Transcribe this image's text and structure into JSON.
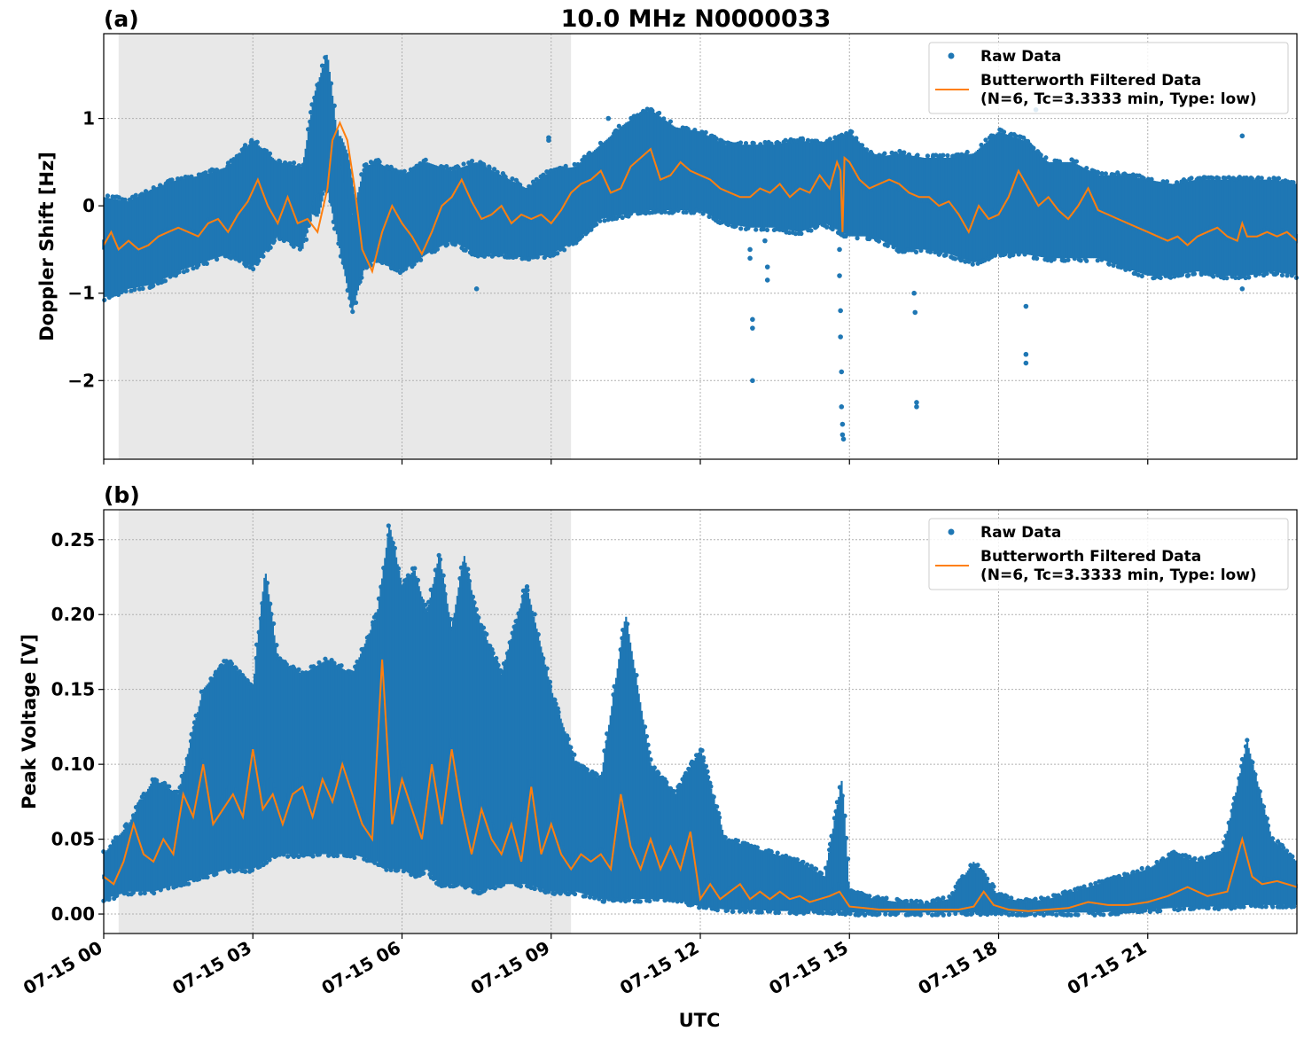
{
  "figure_title": "10.0 MHz N0000033",
  "xlabel": "UTC",
  "x_tick_labels": [
    "07-15 00",
    "07-15 03",
    "07-15 06",
    "07-15 09",
    "07-15 12",
    "07-15 15",
    "07-15 18",
    "07-15 21"
  ],
  "colors": {
    "raw": "#1f77b4",
    "filtered": "#ff7f0e",
    "night_shade": "#e8e8e8",
    "grid": "#b0b0b0"
  },
  "legend": {
    "raw_label": "Raw Data",
    "filtered_label_line1": "Butterworth Filtered Data",
    "filtered_label_line2": "(N=6, Tc=3.3333 min, Type: low)",
    "placement": "top-right"
  },
  "chart_data": [
    {
      "panel_label": "(a)",
      "type": "scatter",
      "ylabel": "Doppler Shift [Hz]",
      "y_ticks": [
        1,
        0,
        -1,
        -2
      ],
      "y_tick_labels": [
        "1",
        "0",
        "−1",
        "−2"
      ],
      "xlim_hours": [
        0,
        24
      ],
      "ylim": [
        -2.9,
        1.97
      ],
      "shaded_region_hours": [
        0.3,
        9.4
      ],
      "grid": true,
      "series": [
        {
          "name": "Raw Data",
          "style": "points",
          "band_hours": [
            0,
            0.5,
            1,
            1.5,
            2,
            2.5,
            3,
            3.5,
            4,
            4.25,
            4.5,
            4.75,
            5,
            5.25,
            5.5,
            6,
            6.5,
            7,
            7.5,
            8,
            8.5,
            9,
            9.5,
            10,
            10.5,
            11,
            11.5,
            12,
            12.5,
            13,
            13.5,
            14,
            14.5,
            15,
            15.5,
            16,
            16.5,
            17,
            17.5,
            18,
            18.5,
            19,
            19.5,
            20,
            20.5,
            21,
            21.5,
            22,
            22.5,
            23,
            23.5,
            24
          ],
          "band_low": [
            -1.05,
            -0.95,
            -0.9,
            -0.75,
            -0.65,
            -0.55,
            -0.7,
            -0.35,
            -0.5,
            0.1,
            0.2,
            -0.5,
            -1.2,
            -0.7,
            -0.6,
            -0.75,
            -0.55,
            -0.4,
            -0.55,
            -0.55,
            -0.6,
            -0.55,
            -0.4,
            -0.15,
            -0.1,
            -0.05,
            -0.05,
            -0.05,
            -0.2,
            -0.25,
            -0.25,
            -0.3,
            -0.2,
            -0.35,
            -0.35,
            -0.5,
            -0.5,
            -0.55,
            -0.65,
            -0.55,
            -0.55,
            -0.6,
            -0.6,
            -0.6,
            -0.7,
            -0.8,
            -0.8,
            -0.75,
            -0.8,
            -0.8,
            -0.75,
            -0.8
          ],
          "band_high": [
            0.1,
            0.05,
            0.2,
            0.3,
            0.35,
            0.45,
            0.75,
            0.5,
            0.45,
            1.3,
            1.75,
            0.55,
            -0.1,
            0.45,
            0.5,
            0.35,
            0.5,
            0.4,
            0.5,
            0.35,
            0.2,
            0.4,
            0.45,
            0.7,
            0.95,
            1.1,
            0.9,
            0.85,
            0.7,
            0.7,
            0.7,
            0.75,
            0.7,
            0.85,
            0.55,
            0.6,
            0.55,
            0.55,
            0.6,
            0.85,
            0.75,
            0.5,
            0.5,
            0.35,
            0.35,
            0.3,
            0.25,
            0.3,
            0.3,
            0.3,
            0.3,
            0.25
          ],
          "outliers": [
            {
              "x": 13.0,
              "y": -0.5
            },
            {
              "x": 13.0,
              "y": -0.6
            },
            {
              "x": 13.05,
              "y": -1.3
            },
            {
              "x": 13.05,
              "y": -1.4
            },
            {
              "x": 13.05,
              "y": -2.0
            },
            {
              "x": 13.3,
              "y": -0.4
            },
            {
              "x": 13.35,
              "y": -0.7
            },
            {
              "x": 13.35,
              "y": -0.85
            },
            {
              "x": 14.8,
              "y": -0.5
            },
            {
              "x": 14.8,
              "y": -0.8
            },
            {
              "x": 14.82,
              "y": -1.2
            },
            {
              "x": 14.82,
              "y": -1.5
            },
            {
              "x": 14.84,
              "y": -1.9
            },
            {
              "x": 14.84,
              "y": -2.3
            },
            {
              "x": 14.86,
              "y": -2.5
            },
            {
              "x": 14.86,
              "y": -2.62
            },
            {
              "x": 14.88,
              "y": -2.67
            },
            {
              "x": 16.3,
              "y": -1.0
            },
            {
              "x": 16.32,
              "y": -1.22
            },
            {
              "x": 16.35,
              "y": -2.25
            },
            {
              "x": 16.35,
              "y": -2.3
            },
            {
              "x": 18.55,
              "y": -1.15
            },
            {
              "x": 18.55,
              "y": -1.7
            },
            {
              "x": 18.55,
              "y": -1.8
            },
            {
              "x": 8.95,
              "y": 0.75
            },
            {
              "x": 8.95,
              "y": 0.78
            },
            {
              "x": 10.15,
              "y": 1.0
            },
            {
              "x": 18.75,
              "y": 1.1
            },
            {
              "x": 22.9,
              "y": 0.8
            },
            {
              "x": 22.9,
              "y": -0.95
            },
            {
              "x": 21.8,
              "y": -0.8
            },
            {
              "x": 7.5,
              "y": -0.95
            }
          ]
        },
        {
          "name": "Butterworth Filtered Data",
          "style": "line",
          "x_hours": [
            0,
            0.15,
            0.3,
            0.5,
            0.7,
            0.9,
            1.1,
            1.3,
            1.5,
            1.7,
            1.9,
            2.1,
            2.3,
            2.5,
            2.7,
            2.9,
            3.1,
            3.3,
            3.5,
            3.7,
            3.9,
            4.1,
            4.3,
            4.5,
            4.6,
            4.75,
            4.9,
            5.05,
            5.2,
            5.4,
            5.6,
            5.8,
            6.0,
            6.2,
            6.4,
            6.6,
            6.8,
            7.0,
            7.2,
            7.4,
            7.6,
            7.8,
            8.0,
            8.2,
            8.4,
            8.6,
            8.8,
            9.0,
            9.2,
            9.4,
            9.6,
            9.8,
            10.0,
            10.2,
            10.4,
            10.6,
            10.8,
            11.0,
            11.2,
            11.4,
            11.6,
            11.8,
            12.0,
            12.2,
            12.4,
            12.6,
            12.8,
            13.0,
            13.2,
            13.4,
            13.6,
            13.8,
            14.0,
            14.2,
            14.4,
            14.6,
            14.75,
            14.82,
            14.86,
            14.9,
            15.0,
            15.2,
            15.4,
            15.6,
            15.8,
            16.0,
            16.2,
            16.4,
            16.6,
            16.8,
            17.0,
            17.2,
            17.4,
            17.6,
            17.8,
            18.0,
            18.2,
            18.4,
            18.6,
            18.8,
            19.0,
            19.2,
            19.4,
            19.6,
            19.8,
            20.0,
            20.2,
            20.4,
            20.6,
            20.8,
            21.0,
            21.2,
            21.4,
            21.6,
            21.8,
            22.0,
            22.2,
            22.4,
            22.6,
            22.8,
            22.9,
            23.0,
            23.2,
            23.4,
            23.6,
            23.8,
            24.0
          ],
          "values": [
            -0.45,
            -0.3,
            -0.5,
            -0.4,
            -0.5,
            -0.45,
            -0.35,
            -0.3,
            -0.25,
            -0.3,
            -0.35,
            -0.2,
            -0.15,
            -0.3,
            -0.1,
            0.05,
            0.3,
            0.0,
            -0.2,
            0.1,
            -0.2,
            -0.15,
            -0.3,
            0.2,
            0.75,
            0.95,
            0.75,
            0.2,
            -0.5,
            -0.75,
            -0.3,
            0.0,
            -0.2,
            -0.35,
            -0.55,
            -0.3,
            0.0,
            0.1,
            0.3,
            0.05,
            -0.15,
            -0.1,
            0.0,
            -0.2,
            -0.1,
            -0.15,
            -0.1,
            -0.2,
            -0.05,
            0.15,
            0.25,
            0.3,
            0.4,
            0.15,
            0.2,
            0.45,
            0.55,
            0.65,
            0.3,
            0.35,
            0.5,
            0.4,
            0.35,
            0.3,
            0.2,
            0.15,
            0.1,
            0.1,
            0.2,
            0.15,
            0.25,
            0.1,
            0.2,
            0.15,
            0.35,
            0.2,
            0.5,
            0.4,
            -0.3,
            0.55,
            0.5,
            0.3,
            0.2,
            0.25,
            0.3,
            0.25,
            0.15,
            0.1,
            0.1,
            0.0,
            0.05,
            -0.1,
            -0.3,
            0.0,
            -0.15,
            -0.1,
            0.1,
            0.4,
            0.2,
            0.0,
            0.1,
            -0.05,
            -0.15,
            0.0,
            0.2,
            -0.05,
            -0.1,
            -0.15,
            -0.2,
            -0.25,
            -0.3,
            -0.35,
            -0.4,
            -0.35,
            -0.45,
            -0.35,
            -0.3,
            -0.25,
            -0.35,
            -0.4,
            -0.2,
            -0.35,
            -0.35,
            -0.3,
            -0.35,
            -0.3,
            -0.4
          ]
        }
      ]
    },
    {
      "panel_label": "(b)",
      "type": "scatter",
      "ylabel": "Peak Voltage [V]",
      "y_ticks": [
        0.25,
        0.2,
        0.15,
        0.1,
        0.05,
        0.0
      ],
      "y_tick_labels": [
        "0.25",
        "0.20",
        "0.15",
        "0.10",
        "0.05",
        "0.00"
      ],
      "xlim_hours": [
        0,
        24
      ],
      "ylim": [
        -0.013,
        0.27
      ],
      "shaded_region_hours": [
        0.3,
        9.4
      ],
      "grid": true,
      "series": [
        {
          "name": "Raw Data",
          "style": "points",
          "band_hours": [
            0,
            0.5,
            1,
            1.5,
            2,
            2.5,
            3,
            3.25,
            3.5,
            4,
            4.5,
            5,
            5.5,
            5.75,
            6,
            6.25,
            6.5,
            6.75,
            7,
            7.25,
            7.5,
            8,
            8.5,
            9,
            9.5,
            10,
            10.5,
            11,
            11.5,
            12,
            12.5,
            13,
            13.5,
            14,
            14.5,
            14.85,
            15,
            15.5,
            16,
            16.5,
            17,
            17.5,
            18,
            18.5,
            19,
            19.5,
            20,
            20.5,
            21,
            21.5,
            22,
            22.5,
            23,
            23.5,
            24
          ],
          "band_low": [
            0.01,
            0.015,
            0.015,
            0.02,
            0.025,
            0.03,
            0.03,
            0.035,
            0.04,
            0.04,
            0.04,
            0.04,
            0.035,
            0.03,
            0.03,
            0.025,
            0.03,
            0.02,
            0.02,
            0.02,
            0.015,
            0.02,
            0.02,
            0.015,
            0.015,
            0.01,
            0.01,
            0.01,
            0.01,
            0.005,
            0.003,
            0.003,
            0.002,
            0.002,
            0.002,
            0.002,
            0.001,
            0.001,
            0.001,
            0.001,
            0.001,
            0.001,
            0.001,
            0.001,
            0.001,
            0.001,
            0.001,
            0.002,
            0.003,
            0.004,
            0.005,
            0.005,
            0.006,
            0.006,
            0.006
          ],
          "band_high": [
            0.04,
            0.06,
            0.09,
            0.08,
            0.15,
            0.17,
            0.15,
            0.23,
            0.17,
            0.16,
            0.17,
            0.16,
            0.2,
            0.26,
            0.22,
            0.23,
            0.2,
            0.24,
            0.19,
            0.24,
            0.2,
            0.16,
            0.22,
            0.15,
            0.1,
            0.09,
            0.2,
            0.1,
            0.08,
            0.11,
            0.05,
            0.045,
            0.04,
            0.035,
            0.025,
            0.09,
            0.015,
            0.01,
            0.008,
            0.007,
            0.01,
            0.035,
            0.012,
            0.008,
            0.01,
            0.015,
            0.02,
            0.025,
            0.03,
            0.04,
            0.035,
            0.04,
            0.115,
            0.05,
            0.035
          ]
        },
        {
          "name": "Butterworth Filtered Data",
          "style": "line",
          "x_hours": [
            0,
            0.2,
            0.4,
            0.6,
            0.8,
            1.0,
            1.2,
            1.4,
            1.6,
            1.8,
            2.0,
            2.2,
            2.4,
            2.6,
            2.8,
            3.0,
            3.2,
            3.4,
            3.6,
            3.8,
            4.0,
            4.2,
            4.4,
            4.6,
            4.8,
            5.0,
            5.2,
            5.4,
            5.6,
            5.8,
            6.0,
            6.2,
            6.4,
            6.6,
            6.8,
            7.0,
            7.2,
            7.4,
            7.6,
            7.8,
            8.0,
            8.2,
            8.4,
            8.6,
            8.8,
            9.0,
            9.2,
            9.4,
            9.6,
            9.8,
            10.0,
            10.2,
            10.4,
            10.6,
            10.8,
            11.0,
            11.2,
            11.4,
            11.6,
            11.8,
            12.0,
            12.2,
            12.4,
            12.6,
            12.8,
            13.0,
            13.2,
            13.4,
            13.6,
            13.8,
            14.0,
            14.2,
            14.4,
            14.6,
            14.8,
            15.0,
            15.3,
            15.6,
            16.0,
            16.4,
            16.8,
            17.2,
            17.5,
            17.7,
            17.9,
            18.2,
            18.6,
            19.0,
            19.4,
            19.8,
            20.2,
            20.6,
            21.0,
            21.4,
            21.8,
            22.2,
            22.6,
            22.9,
            23.1,
            23.3,
            23.6,
            24.0
          ],
          "values": [
            0.025,
            0.02,
            0.035,
            0.06,
            0.04,
            0.035,
            0.05,
            0.04,
            0.08,
            0.065,
            0.1,
            0.06,
            0.07,
            0.08,
            0.065,
            0.11,
            0.07,
            0.08,
            0.06,
            0.08,
            0.085,
            0.065,
            0.09,
            0.075,
            0.1,
            0.08,
            0.06,
            0.05,
            0.17,
            0.06,
            0.09,
            0.07,
            0.05,
            0.1,
            0.06,
            0.11,
            0.07,
            0.04,
            0.07,
            0.05,
            0.04,
            0.06,
            0.035,
            0.085,
            0.04,
            0.06,
            0.04,
            0.03,
            0.04,
            0.035,
            0.04,
            0.03,
            0.08,
            0.045,
            0.03,
            0.05,
            0.03,
            0.045,
            0.03,
            0.055,
            0.01,
            0.02,
            0.01,
            0.015,
            0.02,
            0.01,
            0.015,
            0.01,
            0.015,
            0.01,
            0.012,
            0.008,
            0.01,
            0.012,
            0.015,
            0.005,
            0.004,
            0.003,
            0.003,
            0.003,
            0.003,
            0.003,
            0.005,
            0.015,
            0.006,
            0.003,
            0.002,
            0.003,
            0.004,
            0.008,
            0.006,
            0.006,
            0.008,
            0.012,
            0.018,
            0.012,
            0.015,
            0.05,
            0.025,
            0.02,
            0.022,
            0.018
          ]
        }
      ]
    }
  ]
}
